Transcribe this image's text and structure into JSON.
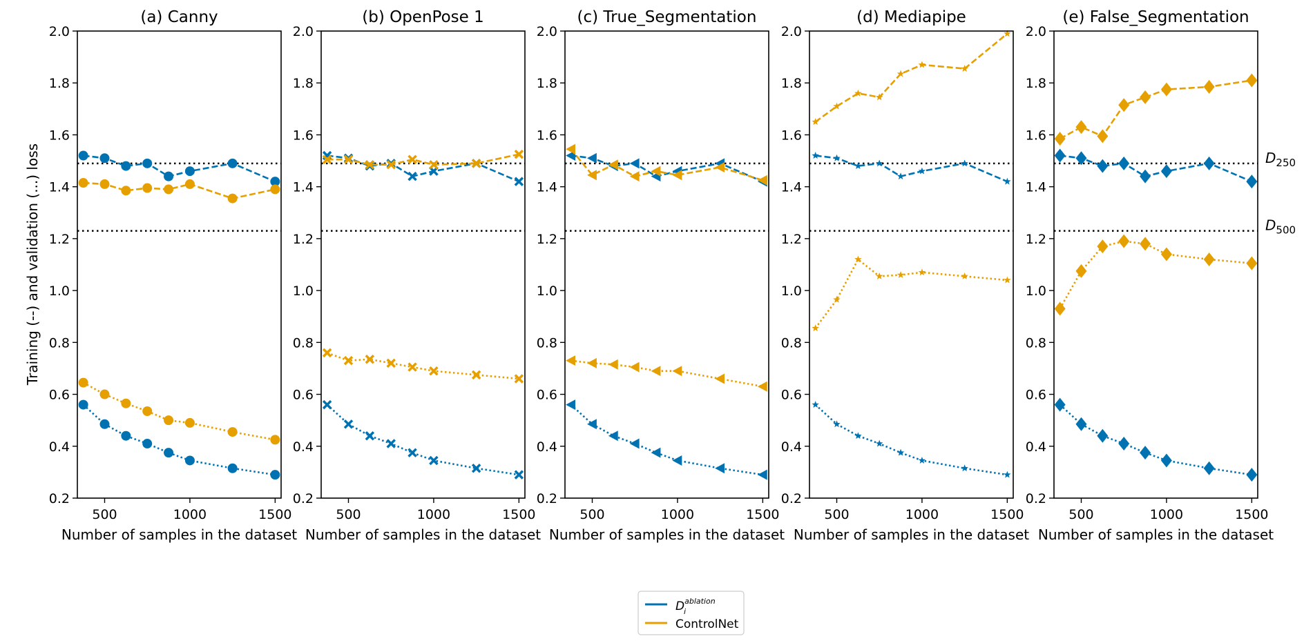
{
  "figure": {
    "ylabel": "Training (--) and validation (...) loss",
    "reference_lines": [
      {
        "label_base": "D",
        "label_sub": "250",
        "y": 1.49
      },
      {
        "label_base": "D",
        "label_sub": "500",
        "y": 1.23
      }
    ],
    "legend": {
      "placement": "bottom-center",
      "entries": [
        {
          "label_base": "D",
          "label_sup": "ablation",
          "label_sub": "i",
          "color": "#0072b2"
        },
        {
          "label": "ControlNet",
          "color": "#e69f00"
        }
      ]
    }
  },
  "chart_data": [
    {
      "type": "line",
      "title": "(a) Canny",
      "xlabel": "Number of samples in the dataset",
      "marker": "circle",
      "x": [
        375,
        500,
        625,
        750,
        875,
        1000,
        1250,
        1500
      ],
      "xticks": [
        500,
        1000,
        1500
      ],
      "ylim": [
        0.2,
        2.0
      ],
      "yticks": [
        "0.2",
        "0.4",
        "0.6",
        "0.8",
        "1.0",
        "1.2",
        "1.4",
        "1.6",
        "1.8",
        "2.0"
      ],
      "series": [
        {
          "group": "ablation",
          "kind": "training",
          "color": "#0072b2",
          "values": [
            1.52,
            1.51,
            1.48,
            1.49,
            1.44,
            1.46,
            1.49,
            1.42
          ]
        },
        {
          "group": "ablation",
          "kind": "validation",
          "color": "#0072b2",
          "values": [
            0.56,
            0.485,
            0.44,
            0.41,
            0.375,
            0.345,
            0.315,
            0.29
          ]
        },
        {
          "group": "controlnet",
          "kind": "training",
          "color": "#e69f00",
          "values": [
            1.415,
            1.41,
            1.385,
            1.395,
            1.39,
            1.41,
            1.355,
            1.39
          ]
        },
        {
          "group": "controlnet",
          "kind": "validation",
          "color": "#e69f00",
          "values": [
            0.645,
            0.6,
            0.565,
            0.535,
            0.5,
            0.49,
            0.455,
            0.425
          ]
        }
      ]
    },
    {
      "type": "line",
      "title": "(b) OpenPose 1",
      "xlabel": "Number of samples in the dataset",
      "marker": "x",
      "x": [
        375,
        500,
        625,
        750,
        875,
        1000,
        1250,
        1500
      ],
      "xticks": [
        500,
        1000,
        1500
      ],
      "ylim": [
        0.2,
        2.0
      ],
      "yticks": [
        "0.2",
        "0.4",
        "0.6",
        "0.8",
        "1.0",
        "1.2",
        "1.4",
        "1.6",
        "1.8",
        "2.0"
      ],
      "series": [
        {
          "group": "ablation",
          "kind": "training",
          "color": "#0072b2",
          "values": [
            1.52,
            1.51,
            1.48,
            1.49,
            1.44,
            1.46,
            1.49,
            1.42
          ]
        },
        {
          "group": "ablation",
          "kind": "validation",
          "color": "#0072b2",
          "values": [
            0.56,
            0.485,
            0.44,
            0.41,
            0.375,
            0.345,
            0.315,
            0.29
          ]
        },
        {
          "group": "controlnet",
          "kind": "training",
          "color": "#e69f00",
          "values": [
            1.505,
            1.505,
            1.485,
            1.485,
            1.505,
            1.485,
            1.49,
            1.525
          ]
        },
        {
          "group": "controlnet",
          "kind": "validation",
          "color": "#e69f00",
          "values": [
            0.76,
            0.73,
            0.735,
            0.72,
            0.705,
            0.69,
            0.675,
            0.66
          ]
        }
      ]
    },
    {
      "type": "line",
      "title": "(c) True_Segmentation",
      "xlabel": "Number of samples in the dataset",
      "marker": "triangle-left",
      "x": [
        375,
        500,
        625,
        750,
        875,
        1000,
        1250,
        1500
      ],
      "xticks": [
        500,
        1000,
        1500
      ],
      "ylim": [
        0.2,
        2.0
      ],
      "yticks": [
        "0.2",
        "0.4",
        "0.6",
        "0.8",
        "1.0",
        "1.2",
        "1.4",
        "1.6",
        "1.8",
        "2.0"
      ],
      "series": [
        {
          "group": "ablation",
          "kind": "training",
          "color": "#0072b2",
          "values": [
            1.52,
            1.51,
            1.48,
            1.49,
            1.44,
            1.46,
            1.49,
            1.42
          ]
        },
        {
          "group": "ablation",
          "kind": "validation",
          "color": "#0072b2",
          "values": [
            0.56,
            0.485,
            0.44,
            0.41,
            0.375,
            0.345,
            0.315,
            0.29
          ]
        },
        {
          "group": "controlnet",
          "kind": "training",
          "color": "#e69f00",
          "values": [
            1.545,
            1.445,
            1.485,
            1.44,
            1.46,
            1.445,
            1.475,
            1.425
          ]
        },
        {
          "group": "controlnet",
          "kind": "validation",
          "color": "#e69f00",
          "values": [
            0.73,
            0.72,
            0.715,
            0.705,
            0.69,
            0.69,
            0.66,
            0.63
          ]
        }
      ]
    },
    {
      "type": "line",
      "title": "(d) Mediapipe",
      "xlabel": "Number of samples in the dataset",
      "marker": "star",
      "x": [
        375,
        500,
        625,
        750,
        875,
        1000,
        1250,
        1500
      ],
      "xticks": [
        500,
        1000,
        1500
      ],
      "ylim": [
        0.2,
        2.0
      ],
      "yticks": [
        "0.2",
        "0.4",
        "0.6",
        "0.8",
        "1.0",
        "1.2",
        "1.4",
        "1.6",
        "1.8",
        "2.0"
      ],
      "series": [
        {
          "group": "ablation",
          "kind": "training",
          "color": "#0072b2",
          "values": [
            1.52,
            1.51,
            1.48,
            1.49,
            1.44,
            1.46,
            1.49,
            1.42
          ]
        },
        {
          "group": "ablation",
          "kind": "validation",
          "color": "#0072b2",
          "values": [
            0.56,
            0.485,
            0.44,
            0.41,
            0.375,
            0.345,
            0.315,
            0.29
          ]
        },
        {
          "group": "controlnet",
          "kind": "training",
          "color": "#e69f00",
          "values": [
            1.65,
            1.71,
            1.76,
            1.745,
            1.835,
            1.87,
            1.855,
            1.99
          ]
        },
        {
          "group": "controlnet",
          "kind": "validation",
          "color": "#e69f00",
          "values": [
            0.855,
            0.965,
            1.12,
            1.055,
            1.06,
            1.07,
            1.055,
            1.04
          ]
        }
      ]
    },
    {
      "type": "line",
      "title": "(e) False_Segmentation",
      "xlabel": "Number of samples in the dataset",
      "marker": "diamond",
      "x": [
        375,
        500,
        625,
        750,
        875,
        1000,
        1250,
        1500
      ],
      "xticks": [
        500,
        1000,
        1500
      ],
      "ylim": [
        0.2,
        2.0
      ],
      "yticks": [
        "0.2",
        "0.4",
        "0.6",
        "0.8",
        "1.0",
        "1.2",
        "1.4",
        "1.6",
        "1.8",
        "2.0"
      ],
      "series": [
        {
          "group": "ablation",
          "kind": "training",
          "color": "#0072b2",
          "values": [
            1.52,
            1.51,
            1.48,
            1.49,
            1.44,
            1.46,
            1.49,
            1.42
          ]
        },
        {
          "group": "ablation",
          "kind": "validation",
          "color": "#0072b2",
          "values": [
            0.56,
            0.485,
            0.44,
            0.41,
            0.375,
            0.345,
            0.315,
            0.29
          ]
        },
        {
          "group": "controlnet",
          "kind": "training",
          "color": "#e69f00",
          "values": [
            1.585,
            1.63,
            1.595,
            1.715,
            1.745,
            1.775,
            1.785,
            1.81
          ]
        },
        {
          "group": "controlnet",
          "kind": "validation",
          "color": "#e69f00",
          "values": [
            0.93,
            1.075,
            1.17,
            1.19,
            1.18,
            1.14,
            1.12,
            1.105
          ]
        }
      ]
    }
  ]
}
